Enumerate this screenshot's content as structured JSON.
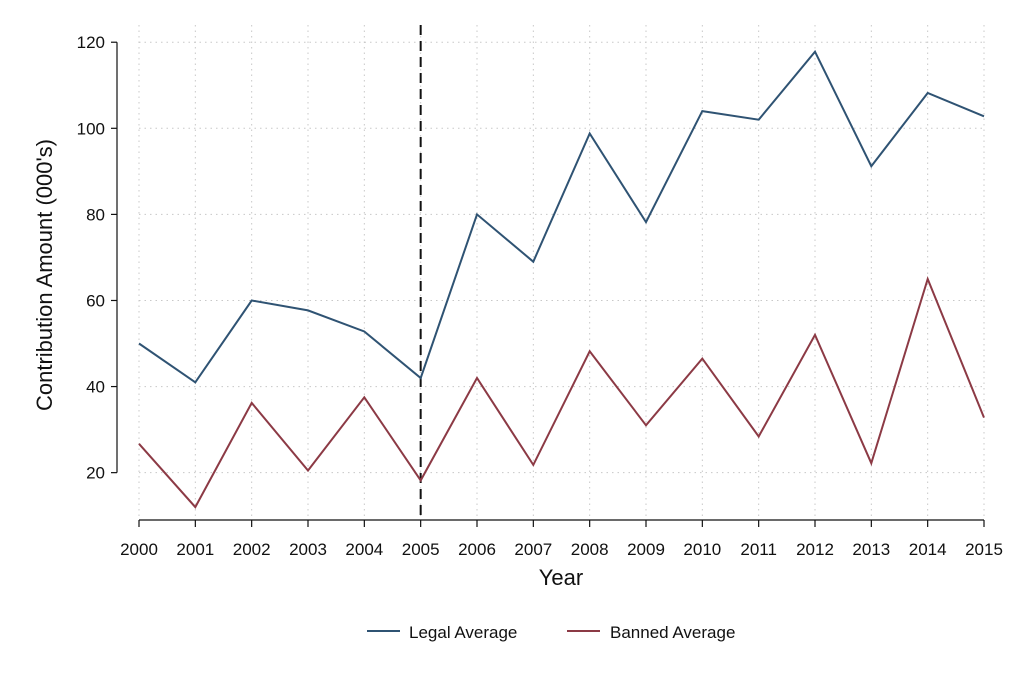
{
  "chart_data": {
    "type": "line",
    "title": "",
    "xlabel": "Year",
    "ylabel": "Contribution Amount (000's)",
    "x": [
      2000,
      2001,
      2002,
      2003,
      2004,
      2005,
      2006,
      2007,
      2008,
      2009,
      2010,
      2011,
      2012,
      2013,
      2014,
      2015
    ],
    "xtick_labels": [
      "2000",
      "2001",
      "2002",
      "2003",
      "2004",
      "2005",
      "2006",
      "2007",
      "2008",
      "2009",
      "2010",
      "2011",
      "2012",
      "2013",
      "2014",
      "2015"
    ],
    "yticks": [
      20,
      40,
      60,
      80,
      100,
      120
    ],
    "ylim": [
      9,
      124
    ],
    "xlim": [
      2000,
      2015
    ],
    "grid": true,
    "reference_line": {
      "x": 2005,
      "style": "dashed",
      "color": "#111111"
    },
    "series": [
      {
        "name": "Legal Average",
        "color": "#2f5373",
        "values": [
          50,
          41,
          60,
          57.7,
          52.8,
          42,
          80,
          69,
          98.8,
          78.2,
          104,
          102,
          117.8,
          91.2,
          108.2,
          102.8
        ]
      },
      {
        "name": "Banned Average",
        "color": "#8c3a45",
        "values": [
          26.7,
          12,
          36.2,
          20.5,
          37.5,
          18.2,
          42,
          21.8,
          48.2,
          31,
          46.5,
          28.4,
          52,
          22.2,
          65,
          32.8
        ]
      }
    ],
    "legend": {
      "position": "bottom-center"
    }
  }
}
